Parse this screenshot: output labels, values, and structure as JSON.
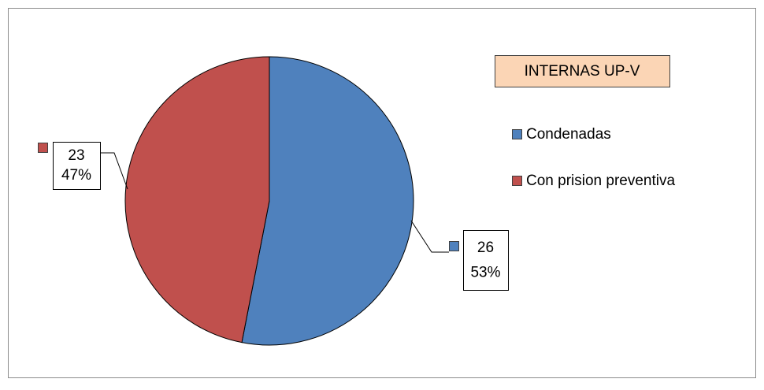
{
  "chart_data": {
    "type": "pie",
    "title": "INTERNAS UP-V",
    "categories": [
      "Condenadas",
      "Con prision preventiva"
    ],
    "values": [
      26,
      23
    ],
    "percent_labels": [
      "53%",
      "47%"
    ],
    "colors": [
      "#4f81bd",
      "#c0504d"
    ],
    "legend": "right"
  }
}
